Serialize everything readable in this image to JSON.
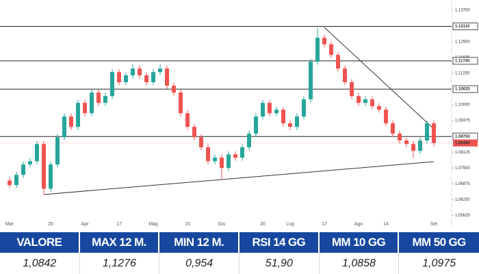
{
  "chart_data": {
    "type": "candlestick",
    "up_color": "#26a69a",
    "down_color": "#ef5350",
    "categories": [
      "Mar",
      null,
      null,
      null,
      null,
      null,
      "20",
      null,
      null,
      null,
      null,
      "Apr",
      null,
      null,
      null,
      null,
      "17",
      null,
      null,
      null,
      null,
      "Mag",
      null,
      null,
      null,
      null,
      "15",
      null,
      null,
      null,
      null,
      "Giu",
      null,
      null,
      null,
      null,
      null,
      "20",
      null,
      null,
      null,
      "Lug",
      null,
      null,
      null,
      null,
      "17",
      null,
      null,
      null,
      null,
      "Ago",
      null,
      null,
      null,
      "14",
      null,
      null,
      null,
      null,
      null,
      null,
      "Set"
    ],
    "open": [
      1.07,
      1.0682,
      1.0723,
      1.0764,
      1.0777,
      1.0845,
      1.0668,
      1.0764,
      1.0872,
      1.0954,
      1.0913,
      1.1008,
      1.0967,
      1.1049,
      1.1008,
      1.1035,
      1.113,
      1.109,
      1.1117,
      1.1144,
      1.1117,
      1.109,
      1.113,
      1.1144,
      1.1076,
      1.1049,
      1.0967,
      1.0913,
      1.0872,
      1.0832,
      1.0777,
      1.0791,
      1.075,
      1.0804,
      1.0791,
      1.0832,
      1.0886,
      1.0954,
      1.1008,
      1.0967,
      1.0981,
      1.0927,
      1.0913,
      1.0954,
      1.1022,
      1.1171,
      1.1266,
      1.124,
      1.1198,
      1.1144,
      1.109,
      1.1035,
      1.1008,
      1.1022,
      1.0995,
      1.0981,
      1.0927,
      1.0886,
      1.0859,
      1.0845,
      1.0818,
      1.0859,
      1.0927
    ],
    "high": [
      1.0712,
      1.0735,
      1.0776,
      1.0789,
      1.0857,
      1.0857,
      1.0776,
      1.0884,
      1.0966,
      1.0966,
      1.102,
      1.102,
      1.1061,
      1.1061,
      1.1047,
      1.1142,
      1.1142,
      1.1129,
      1.116,
      1.1156,
      1.1129,
      1.1142,
      1.116,
      1.1156,
      1.1088,
      1.1061,
      1.0979,
      1.0925,
      1.0884,
      1.0844,
      1.0803,
      1.0803,
      1.0816,
      1.0816,
      1.0844,
      1.0898,
      1.0966,
      1.102,
      1.102,
      1.0993,
      1.0993,
      1.0939,
      1.0966,
      1.1034,
      1.1183,
      1.1305,
      1.1278,
      1.1252,
      1.121,
      1.1156,
      1.1102,
      1.1047,
      1.1034,
      1.1034,
      1.1007,
      1.0993,
      1.0939,
      1.0898,
      1.0871,
      1.0857,
      1.0871,
      1.0939,
      1.0939
    ],
    "low": [
      1.067,
      1.067,
      1.0711,
      1.0752,
      1.0765,
      1.0645,
      1.0656,
      1.0752,
      1.086,
      1.0901,
      1.0901,
      1.0955,
      1.0955,
      1.0996,
      1.0996,
      1.1023,
      1.1078,
      1.1078,
      1.1105,
      1.1105,
      1.1078,
      1.1078,
      1.1118,
      1.1064,
      1.1037,
      1.0955,
      1.0901,
      1.086,
      1.082,
      1.0765,
      1.0765,
      1.0705,
      1.0738,
      1.0779,
      1.0779,
      1.082,
      1.0874,
      1.0942,
      1.0955,
      1.0955,
      1.0915,
      1.0901,
      1.0901,
      1.0942,
      1.101,
      1.1159,
      1.1228,
      1.1186,
      1.1132,
      1.1078,
      1.1023,
      1.0996,
      1.0996,
      1.0983,
      1.0969,
      1.0915,
      1.0874,
      1.0847,
      1.0833,
      1.079,
      1.0806,
      1.0847,
      1.0837
    ],
    "close": [
      1.0682,
      1.0723,
      1.0764,
      1.0777,
      1.0845,
      1.0668,
      1.0764,
      1.0872,
      1.0954,
      1.0913,
      1.1008,
      1.0967,
      1.1049,
      1.1008,
      1.1035,
      1.113,
      1.109,
      1.1117,
      1.1144,
      1.1117,
      1.109,
      1.113,
      1.1144,
      1.1076,
      1.1049,
      1.0967,
      1.0913,
      1.0872,
      1.0832,
      1.0777,
      1.0791,
      1.075,
      1.0804,
      1.0791,
      1.0832,
      1.0886,
      1.0954,
      1.1008,
      1.0967,
      1.0981,
      1.0927,
      1.0913,
      1.0954,
      1.1022,
      1.1171,
      1.1266,
      1.124,
      1.1198,
      1.1144,
      1.109,
      1.1035,
      1.1008,
      1.1022,
      1.0995,
      1.0981,
      1.0927,
      1.0886,
      1.0859,
      1.0845,
      1.0818,
      1.0859,
      1.0927,
      1.0849
    ],
    "ylim": [
      1.052,
      1.1402
    ],
    "yticks": [
      {
        "value": 1.1375,
        "label": "1.13750"
      },
      {
        "value": 1.125,
        "label": "1.12500"
      },
      {
        "value": 1.11875,
        "label": "1.11875"
      },
      {
        "value": 1.1125,
        "label": "1.11250"
      },
      {
        "value": 1.1,
        "label": "1.10000"
      },
      {
        "value": 1.09375,
        "label": "1.09375"
      },
      {
        "value": 1.08125,
        "label": "1.08125"
      },
      {
        "value": 1.075,
        "label": "1.07500"
      },
      {
        "value": 1.06875,
        "label": "1.06875"
      },
      {
        "value": 1.0625,
        "label": "1.06250"
      },
      {
        "value": 1.05625,
        "label": "1.05625"
      }
    ],
    "levels": [
      {
        "value": 1.1311,
        "label": "1.13110"
      },
      {
        "value": 1.11745,
        "label": "1.11745"
      },
      {
        "value": 1.10625,
        "label": "1.10625"
      },
      {
        "value": 1.0875,
        "label": "1.08750"
      }
    ],
    "current_price": {
      "value": 1.0849,
      "label": "1.08490",
      "color": "#ef5350"
    },
    "trendlines": [
      {
        "from": [
          5,
          1.0645
        ],
        "to": [
          62,
          1.0775
        ]
      },
      {
        "from": [
          46,
          1.1307
        ],
        "to": [
          62,
          1.0905
        ]
      }
    ],
    "grid": false
  },
  "table": {
    "columns": [
      "VALORE",
      "MAX 12 M.",
      "MIN 12 M.",
      "RSI 14 GG",
      "MM 10 GG",
      "MM 50 GG"
    ],
    "rows": [
      [
        "1,0842",
        "1,1276",
        "0,954",
        "51,90",
        "1,0858",
        "1,0975"
      ]
    ]
  }
}
